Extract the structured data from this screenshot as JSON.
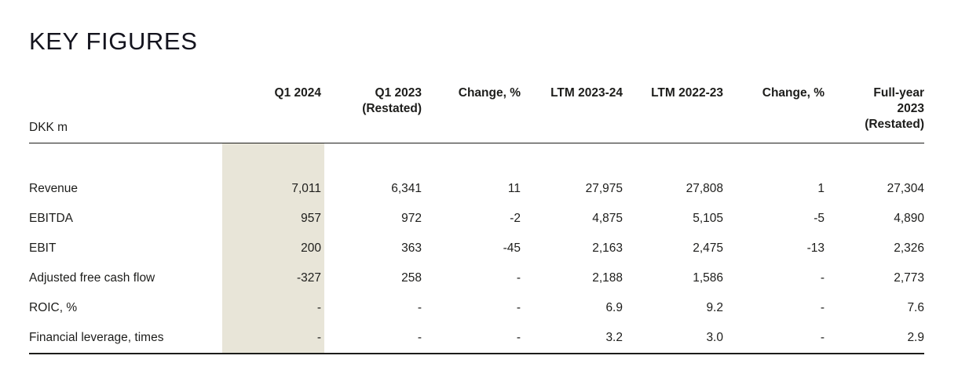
{
  "page": {
    "title": "KEY FIGURES"
  },
  "table": {
    "unit_label": "DKK m",
    "colors": {
      "highlight_band": "#e8e5d8",
      "text": "#1d1d1b",
      "rule": "#1d1d1b"
    },
    "columns": [
      {
        "lines": [
          "Q1 2024"
        ],
        "highlight": true
      },
      {
        "lines": [
          "Q1 2023",
          "(Restated)"
        ],
        "highlight": false
      },
      {
        "lines": [
          "Change, %"
        ],
        "highlight": false
      },
      {
        "lines": [
          "LTM 2023-24"
        ],
        "highlight": false
      },
      {
        "lines": [
          "LTM 2022-23"
        ],
        "highlight": false
      },
      {
        "lines": [
          "Change, %"
        ],
        "highlight": false
      },
      {
        "lines": [
          "Full-year",
          "2023",
          "(Restated)"
        ],
        "highlight": false
      }
    ],
    "rows": [
      {
        "label": "Revenue",
        "values": [
          "7,011",
          "6,341",
          "11",
          "27,975",
          "27,808",
          "1",
          "27,304"
        ]
      },
      {
        "label": "EBITDA",
        "values": [
          "957",
          "972",
          "-2",
          "4,875",
          "5,105",
          "-5",
          "4,890"
        ]
      },
      {
        "label": "EBIT",
        "values": [
          "200",
          "363",
          "-45",
          "2,163",
          "2,475",
          "-13",
          "2,326"
        ]
      },
      {
        "label": "Adjusted free cash flow",
        "values": [
          "-327",
          "258",
          "-",
          "2,188",
          "1,586",
          "-",
          "2,773"
        ]
      },
      {
        "label": "ROIC, %",
        "values": [
          "-",
          "-",
          "-",
          "6.9",
          "9.2",
          "-",
          "7.6"
        ]
      },
      {
        "label": "Financial leverage, times",
        "values": [
          "-",
          "-",
          "-",
          "3.2",
          "3.0",
          "-",
          "2.9"
        ]
      }
    ]
  }
}
